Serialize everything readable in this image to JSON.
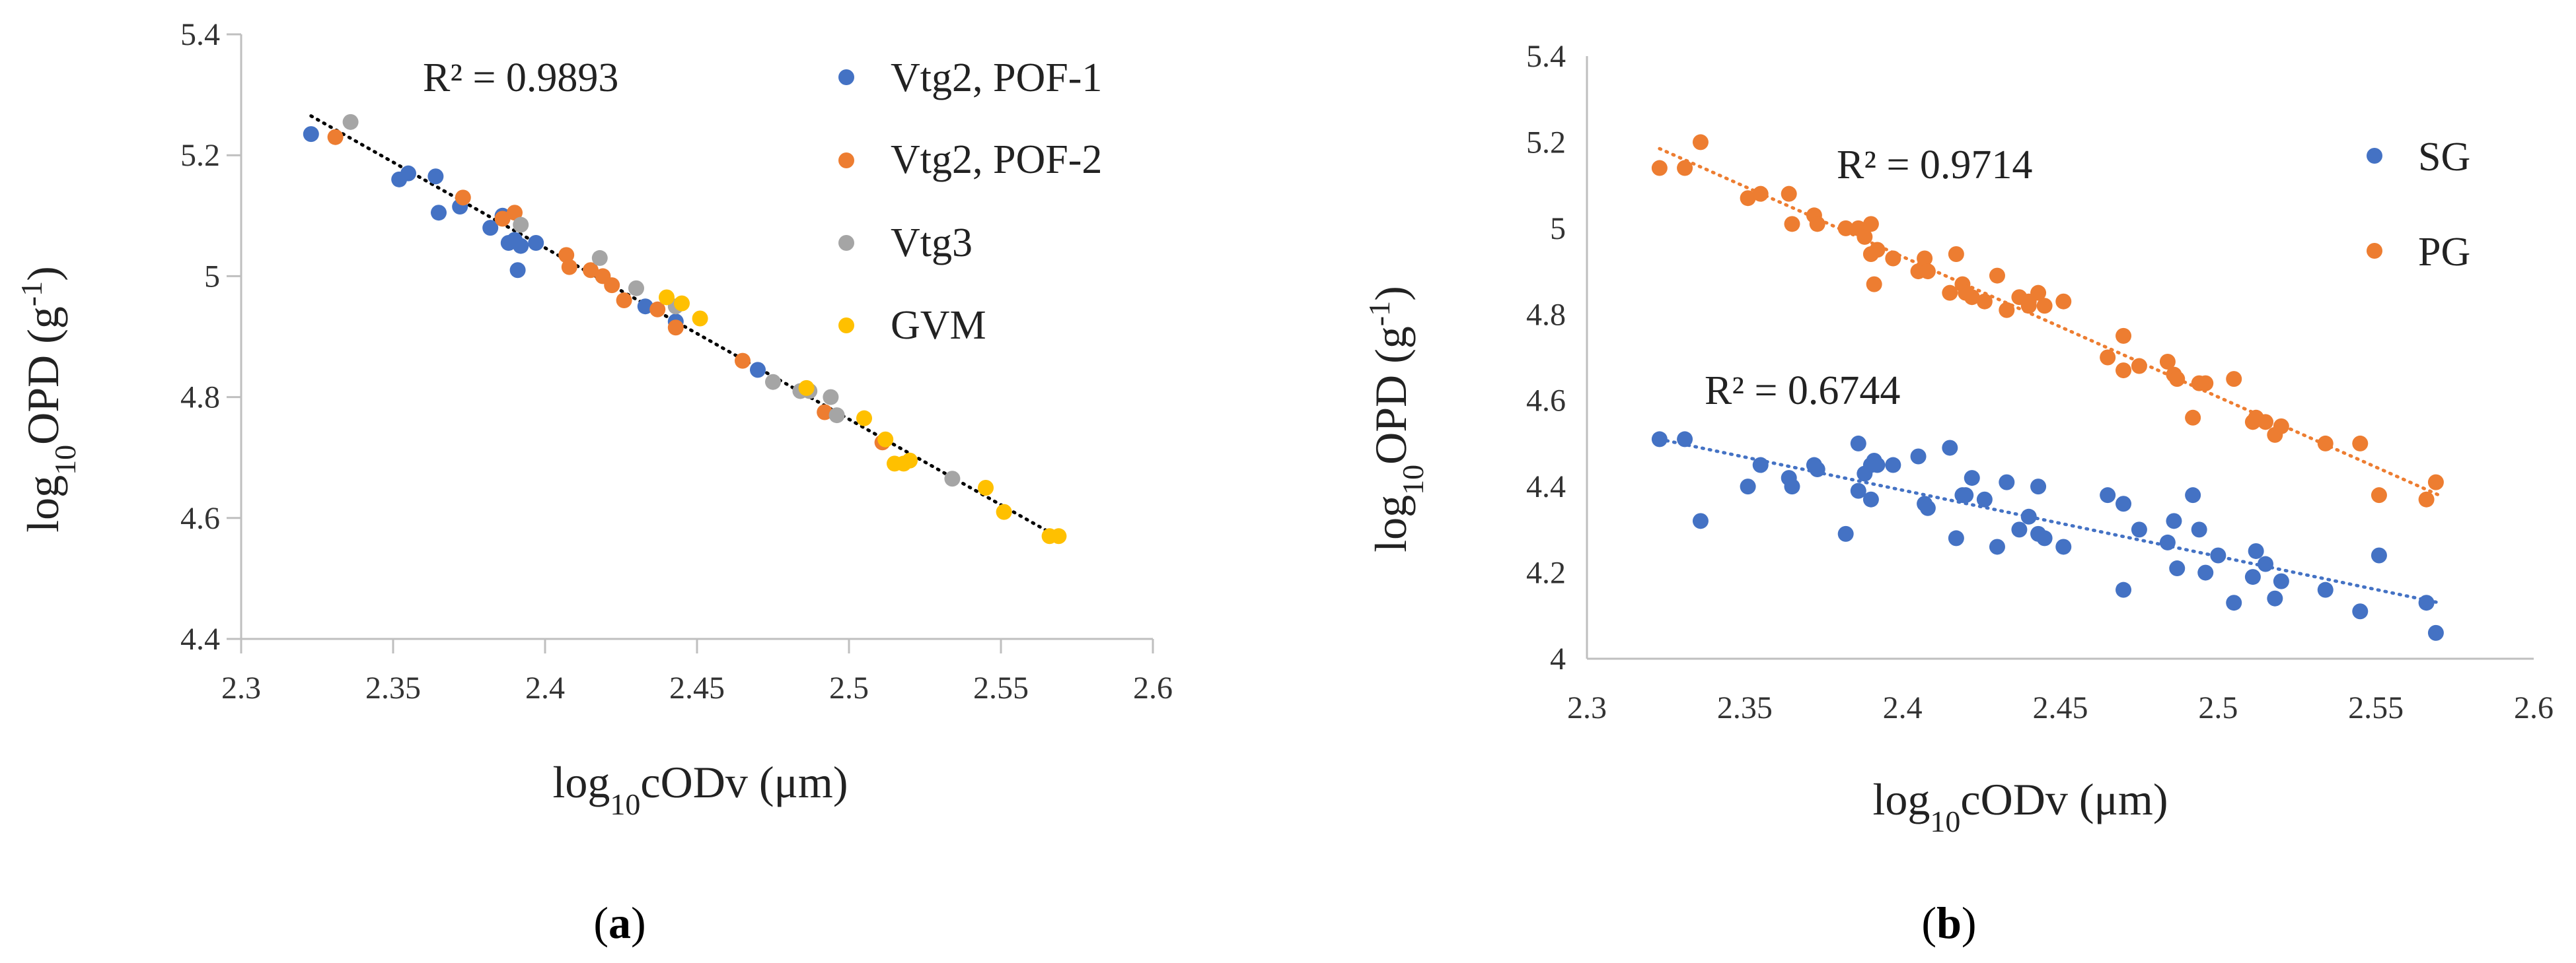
{
  "colors": {
    "blue": "#4472C4",
    "orange": "#ED7D31",
    "gray": "#A5A5A5",
    "yellow": "#FFC000",
    "axis": "#BFBFBF",
    "trend": "#000000"
  },
  "chart_data": [
    {
      "type": "scatter",
      "caption_open": "(",
      "caption_letter": "a",
      "caption_close": ")",
      "ylabel": {
        "prefix": "log",
        "sub": "10",
        "main": "OPD (g",
        "sup": "-1",
        "suffix": ")"
      },
      "xlabel": {
        "prefix": "log",
        "sub": "10",
        "main": "cODv (μm)"
      },
      "xlim": [
        2.3,
        2.6
      ],
      "ylim": [
        4.4,
        5.4
      ],
      "xticks": [
        2.3,
        2.35,
        2.4,
        2.45,
        2.5,
        2.55,
        2.6
      ],
      "xtick_labels": [
        "2.3",
        "2.35",
        "2.4",
        "2.45",
        "2.5",
        "2.55",
        "2.6"
      ],
      "yticks": [
        4.4,
        4.6,
        4.8,
        5.0,
        5.2,
        5.4
      ],
      "ytick_labels": [
        "4.4",
        "4.6",
        "4.8",
        "5",
        "5.2",
        "5.4"
      ],
      "r2_labels": [
        "R² = 0.9893"
      ],
      "trendlines": [
        {
          "x": [
            2.323,
            2.57
          ],
          "y": [
            5.265,
            4.565
          ],
          "color_key": "trend"
        }
      ],
      "series": [
        {
          "name": "Vtg2, POF-1",
          "color_key": "blue",
          "points": [
            [
              2.323,
              5.235
            ],
            [
              2.352,
              5.16
            ],
            [
              2.355,
              5.17
            ],
            [
              2.364,
              5.165
            ],
            [
              2.365,
              5.105
            ],
            [
              2.372,
              5.115
            ],
            [
              2.382,
              5.08
            ],
            [
              2.386,
              5.1
            ],
            [
              2.388,
              5.055
            ],
            [
              2.39,
              5.06
            ],
            [
              2.391,
              5.01
            ],
            [
              2.392,
              5.05
            ],
            [
              2.397,
              5.055
            ],
            [
              2.433,
              4.95
            ],
            [
              2.443,
              4.925
            ],
            [
              2.47,
              4.845
            ]
          ]
        },
        {
          "name": "Vtg2, POF-2",
          "color_key": "orange",
          "points": [
            [
              2.331,
              5.23
            ],
            [
              2.373,
              5.13
            ],
            [
              2.386,
              5.095
            ],
            [
              2.39,
              5.105
            ],
            [
              2.407,
              5.035
            ],
            [
              2.408,
              5.015
            ],
            [
              2.415,
              5.01
            ],
            [
              2.419,
              5.0
            ],
            [
              2.422,
              4.985
            ],
            [
              2.426,
              4.96
            ],
            [
              2.437,
              4.945
            ],
            [
              2.443,
              4.915
            ],
            [
              2.465,
              4.86
            ],
            [
              2.492,
              4.775
            ],
            [
              2.511,
              4.725
            ]
          ]
        },
        {
          "name": "Vtg3",
          "color_key": "gray",
          "points": [
            [
              2.336,
              5.255
            ],
            [
              2.392,
              5.085
            ],
            [
              2.418,
              5.03
            ],
            [
              2.43,
              4.98
            ],
            [
              2.443,
              4.95
            ],
            [
              2.475,
              4.825
            ],
            [
              2.484,
              4.81
            ],
            [
              2.487,
              4.81
            ],
            [
              2.494,
              4.8
            ],
            [
              2.496,
              4.77
            ],
            [
              2.534,
              4.665
            ]
          ]
        },
        {
          "name": "GVM",
          "color_key": "yellow",
          "points": [
            [
              2.44,
              4.965
            ],
            [
              2.445,
              4.955
            ],
            [
              2.451,
              4.93
            ],
            [
              2.486,
              4.815
            ],
            [
              2.505,
              4.765
            ],
            [
              2.512,
              4.73
            ],
            [
              2.515,
              4.69
            ],
            [
              2.518,
              4.69
            ],
            [
              2.52,
              4.695
            ],
            [
              2.545,
              4.65
            ],
            [
              2.551,
              4.61
            ],
            [
              2.566,
              4.57
            ],
            [
              2.569,
              4.57
            ]
          ]
        }
      ]
    },
    {
      "type": "scatter",
      "caption_open": "(",
      "caption_letter": "b",
      "caption_close": ")",
      "ylabel": {
        "prefix": "log",
        "sub": "10",
        "main": "OPD (g",
        "sup": "-1",
        "suffix": ")"
      },
      "xlabel": {
        "prefix": "log",
        "sub": "10",
        "main": "cODv (μm)"
      },
      "xlim": [
        2.3,
        2.6
      ],
      "ylim": [
        4.0,
        5.4
      ],
      "xticks": [
        2.3,
        2.35,
        2.4,
        2.45,
        2.5,
        2.55,
        2.6
      ],
      "xtick_labels": [
        "2.3",
        "2.35",
        "2.4",
        "2.45",
        "2.5",
        "2.55",
        "2.6"
      ],
      "yticks": [
        4.0,
        4.2,
        4.4,
        4.6,
        4.8,
        5.0,
        5.2,
        5.4
      ],
      "ytick_labels": [
        "4",
        "4.2",
        "4.4",
        "4.6",
        "4.8",
        "5",
        "5.2",
        "5.4"
      ],
      "r2_labels": [
        "R² = 0.9714",
        "R² = 0.6744"
      ],
      "trendlines": [
        {
          "x": [
            2.323,
            2.57
          ],
          "y": [
            5.185,
            4.38
          ],
          "color_key": "orange"
        },
        {
          "x": [
            2.323,
            2.57
          ],
          "y": [
            4.51,
            4.13
          ],
          "color_key": "blue"
        }
      ],
      "series": [
        {
          "name": "SG",
          "color_key": "blue",
          "points": [
            [
              2.323,
              4.51
            ],
            [
              2.331,
              4.51
            ],
            [
              2.336,
              4.32
            ],
            [
              2.351,
              4.4
            ],
            [
              2.355,
              4.45
            ],
            [
              2.364,
              4.42
            ],
            [
              2.365,
              4.4
            ],
            [
              2.372,
              4.45
            ],
            [
              2.373,
              4.44
            ],
            [
              2.382,
              4.29
            ],
            [
              2.386,
              4.39
            ],
            [
              2.386,
              4.5
            ],
            [
              2.388,
              4.43
            ],
            [
              2.39,
              4.37
            ],
            [
              2.39,
              4.45
            ],
            [
              2.391,
              4.46
            ],
            [
              2.392,
              4.45
            ],
            [
              2.397,
              4.45
            ],
            [
              2.405,
              4.47
            ],
            [
              2.407,
              4.36
            ],
            [
              2.408,
              4.35
            ],
            [
              2.415,
              4.49
            ],
            [
              2.417,
              4.28
            ],
            [
              2.419,
              4.38
            ],
            [
              2.422,
              4.42
            ],
            [
              2.426,
              4.37
            ],
            [
              2.43,
              4.26
            ],
            [
              2.433,
              4.41
            ],
            [
              2.437,
              4.3
            ],
            [
              2.44,
              4.33
            ],
            [
              2.443,
              4.29
            ],
            [
              2.445,
              4.28
            ],
            [
              2.443,
              4.4
            ],
            [
              2.451,
              4.26
            ],
            [
              2.465,
              4.38
            ],
            [
              2.47,
              4.16
            ],
            [
              2.47,
              4.36
            ],
            [
              2.475,
              4.3
            ],
            [
              2.484,
              4.27
            ],
            [
              2.486,
              4.32
            ],
            [
              2.487,
              4.21
            ],
            [
              2.492,
              4.38
            ],
            [
              2.494,
              4.3
            ],
            [
              2.496,
              4.2
            ],
            [
              2.505,
              4.13
            ],
            [
              2.511,
              4.19
            ],
            [
              2.512,
              4.25
            ],
            [
              2.515,
              4.22
            ],
            [
              2.518,
              4.14
            ],
            [
              2.52,
              4.18
            ],
            [
              2.534,
              4.16
            ],
            [
              2.545,
              4.11
            ],
            [
              2.551,
              4.24
            ],
            [
              2.566,
              4.13
            ],
            [
              2.569,
              4.06
            ],
            [
              2.5,
              4.24
            ],
            [
              2.42,
              4.38
            ]
          ]
        },
        {
          "name": "PG",
          "color_key": "orange",
          "points": [
            [
              2.323,
              5.14
            ],
            [
              2.331,
              5.14
            ],
            [
              2.336,
              5.2
            ],
            [
              2.351,
              5.07
            ],
            [
              2.355,
              5.08
            ],
            [
              2.364,
              5.08
            ],
            [
              2.365,
              5.01
            ],
            [
              2.372,
              5.03
            ],
            [
              2.373,
              5.01
            ],
            [
              2.382,
              5.0
            ],
            [
              2.386,
              5.0
            ],
            [
              2.388,
              4.98
            ],
            [
              2.39,
              5.01
            ],
            [
              2.39,
              4.94
            ],
            [
              2.391,
              4.87
            ],
            [
              2.392,
              4.95
            ],
            [
              2.397,
              4.93
            ],
            [
              2.405,
              4.9
            ],
            [
              2.407,
              4.93
            ],
            [
              2.408,
              4.9
            ],
            [
              2.415,
              4.85
            ],
            [
              2.417,
              4.94
            ],
            [
              2.419,
              4.87
            ],
            [
              2.422,
              4.84
            ],
            [
              2.426,
              4.83
            ],
            [
              2.43,
              4.89
            ],
            [
              2.433,
              4.81
            ],
            [
              2.437,
              4.84
            ],
            [
              2.44,
              4.82
            ],
            [
              2.443,
              4.85
            ],
            [
              2.445,
              4.82
            ],
            [
              2.451,
              4.83
            ],
            [
              2.465,
              4.7
            ],
            [
              2.47,
              4.75
            ],
            [
              2.47,
              4.67
            ],
            [
              2.475,
              4.68
            ],
            [
              2.484,
              4.69
            ],
            [
              2.486,
              4.66
            ],
            [
              2.487,
              4.65
            ],
            [
              2.492,
              4.56
            ],
            [
              2.494,
              4.64
            ],
            [
              2.496,
              4.64
            ],
            [
              2.505,
              4.65
            ],
            [
              2.511,
              4.55
            ],
            [
              2.512,
              4.56
            ],
            [
              2.515,
              4.55
            ],
            [
              2.518,
              4.52
            ],
            [
              2.52,
              4.54
            ],
            [
              2.534,
              4.5
            ],
            [
              2.545,
              4.5
            ],
            [
              2.551,
              4.38
            ],
            [
              2.566,
              4.37
            ],
            [
              2.569,
              4.41
            ],
            [
              2.44,
              4.83
            ],
            [
              2.42,
              4.85
            ]
          ]
        }
      ],
      "legend": [
        {
          "name": "SG",
          "color_key": "blue"
        },
        {
          "name": "PG",
          "color_key": "orange"
        }
      ]
    }
  ]
}
